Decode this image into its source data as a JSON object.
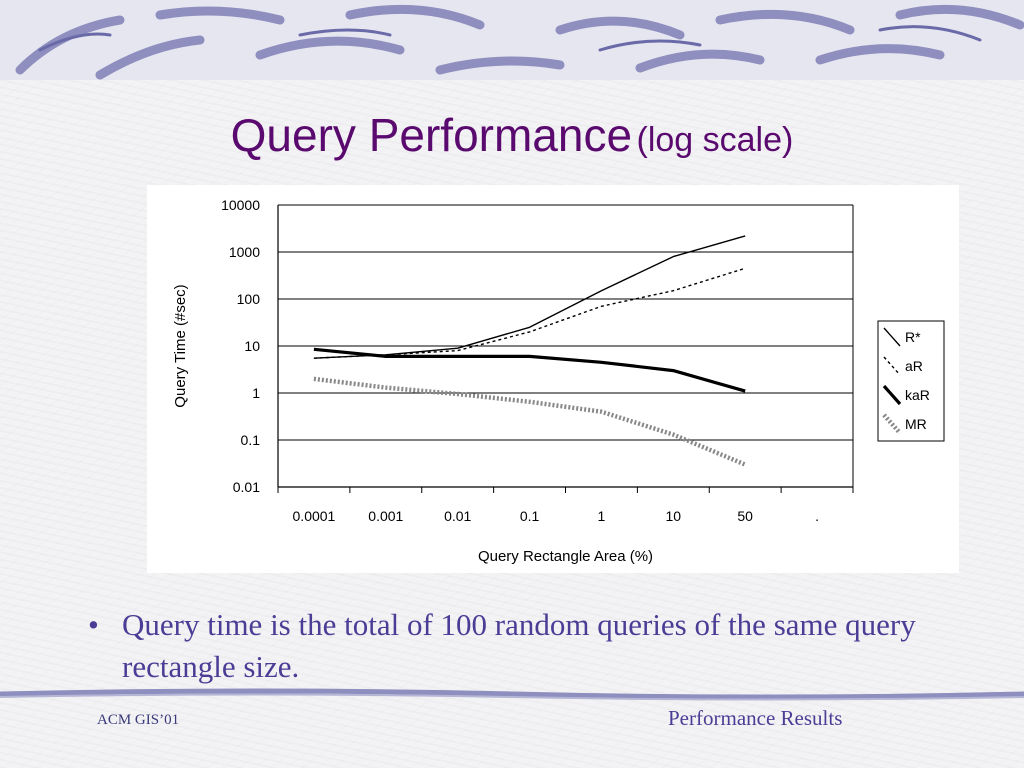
{
  "slide": {
    "title_main": "Query Performance",
    "title_sub": "(log scale)",
    "bullet_glyph": "•",
    "bullet_text": "Query time is the total of 100 random queries of the same query rectangle size.",
    "footer_left": "ACM GIS’01",
    "footer_right": "Performance Results",
    "colors": {
      "title": "#5a0a6e",
      "body_text": "#4b3d96",
      "banner": "#8e8ebf"
    }
  },
  "chart_data": {
    "type": "line",
    "title": "",
    "xlabel": "Query Rectangle Area (%)",
    "ylabel": "Query Time (#sec)",
    "y_scale": "log",
    "ylim": [
      0.01,
      10000
    ],
    "y_ticks": [
      "10000",
      "1000",
      "100",
      "10",
      "1",
      "0.1",
      "0.01"
    ],
    "categories": [
      "0.0001",
      "0.001",
      "0.01",
      "0.1",
      "1",
      "10",
      "50",
      "."
    ],
    "grid": "horizontal",
    "legend_position": "right",
    "series": [
      {
        "name": "R*",
        "style": "thin-solid",
        "values": [
          5.5,
          6.5,
          9,
          25,
          150,
          800,
          2200,
          null
        ]
      },
      {
        "name": "aR",
        "style": "thin-dashed",
        "values": [
          5.5,
          6.5,
          8,
          20,
          70,
          150,
          450,
          null
        ]
      },
      {
        "name": "kaR",
        "style": "thick-solid",
        "values": [
          8.5,
          6,
          6,
          6,
          4.5,
          3,
          1.1,
          null
        ]
      },
      {
        "name": "MR",
        "style": "thick-dotted",
        "values": [
          2,
          1.3,
          0.95,
          0.65,
          0.4,
          0.13,
          0.03,
          null
        ]
      }
    ]
  }
}
